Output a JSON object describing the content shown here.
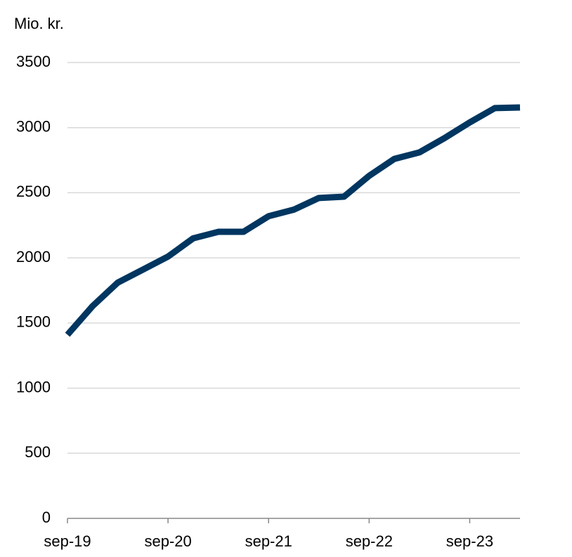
{
  "chart_data": {
    "type": "line",
    "y_label": "Mio. kr.",
    "categories": [
      "sep-19",
      null,
      null,
      null,
      "sep-20",
      null,
      null,
      null,
      "sep-21",
      null,
      null,
      null,
      "sep-22",
      null,
      null,
      null,
      "sep-23",
      null,
      null
    ],
    "values": [
      1410,
      1630,
      1810,
      1910,
      2010,
      2150,
      2200,
      2200,
      2320,
      2370,
      2460,
      2470,
      2630,
      2760,
      2810,
      2920,
      3040,
      3150,
      3155
    ],
    "color": "#003660",
    "ylim": [
      0,
      3500
    ],
    "yticks": [
      0,
      500,
      1000,
      1500,
      2000,
      2500,
      3000,
      3500
    ],
    "grid": true
  }
}
